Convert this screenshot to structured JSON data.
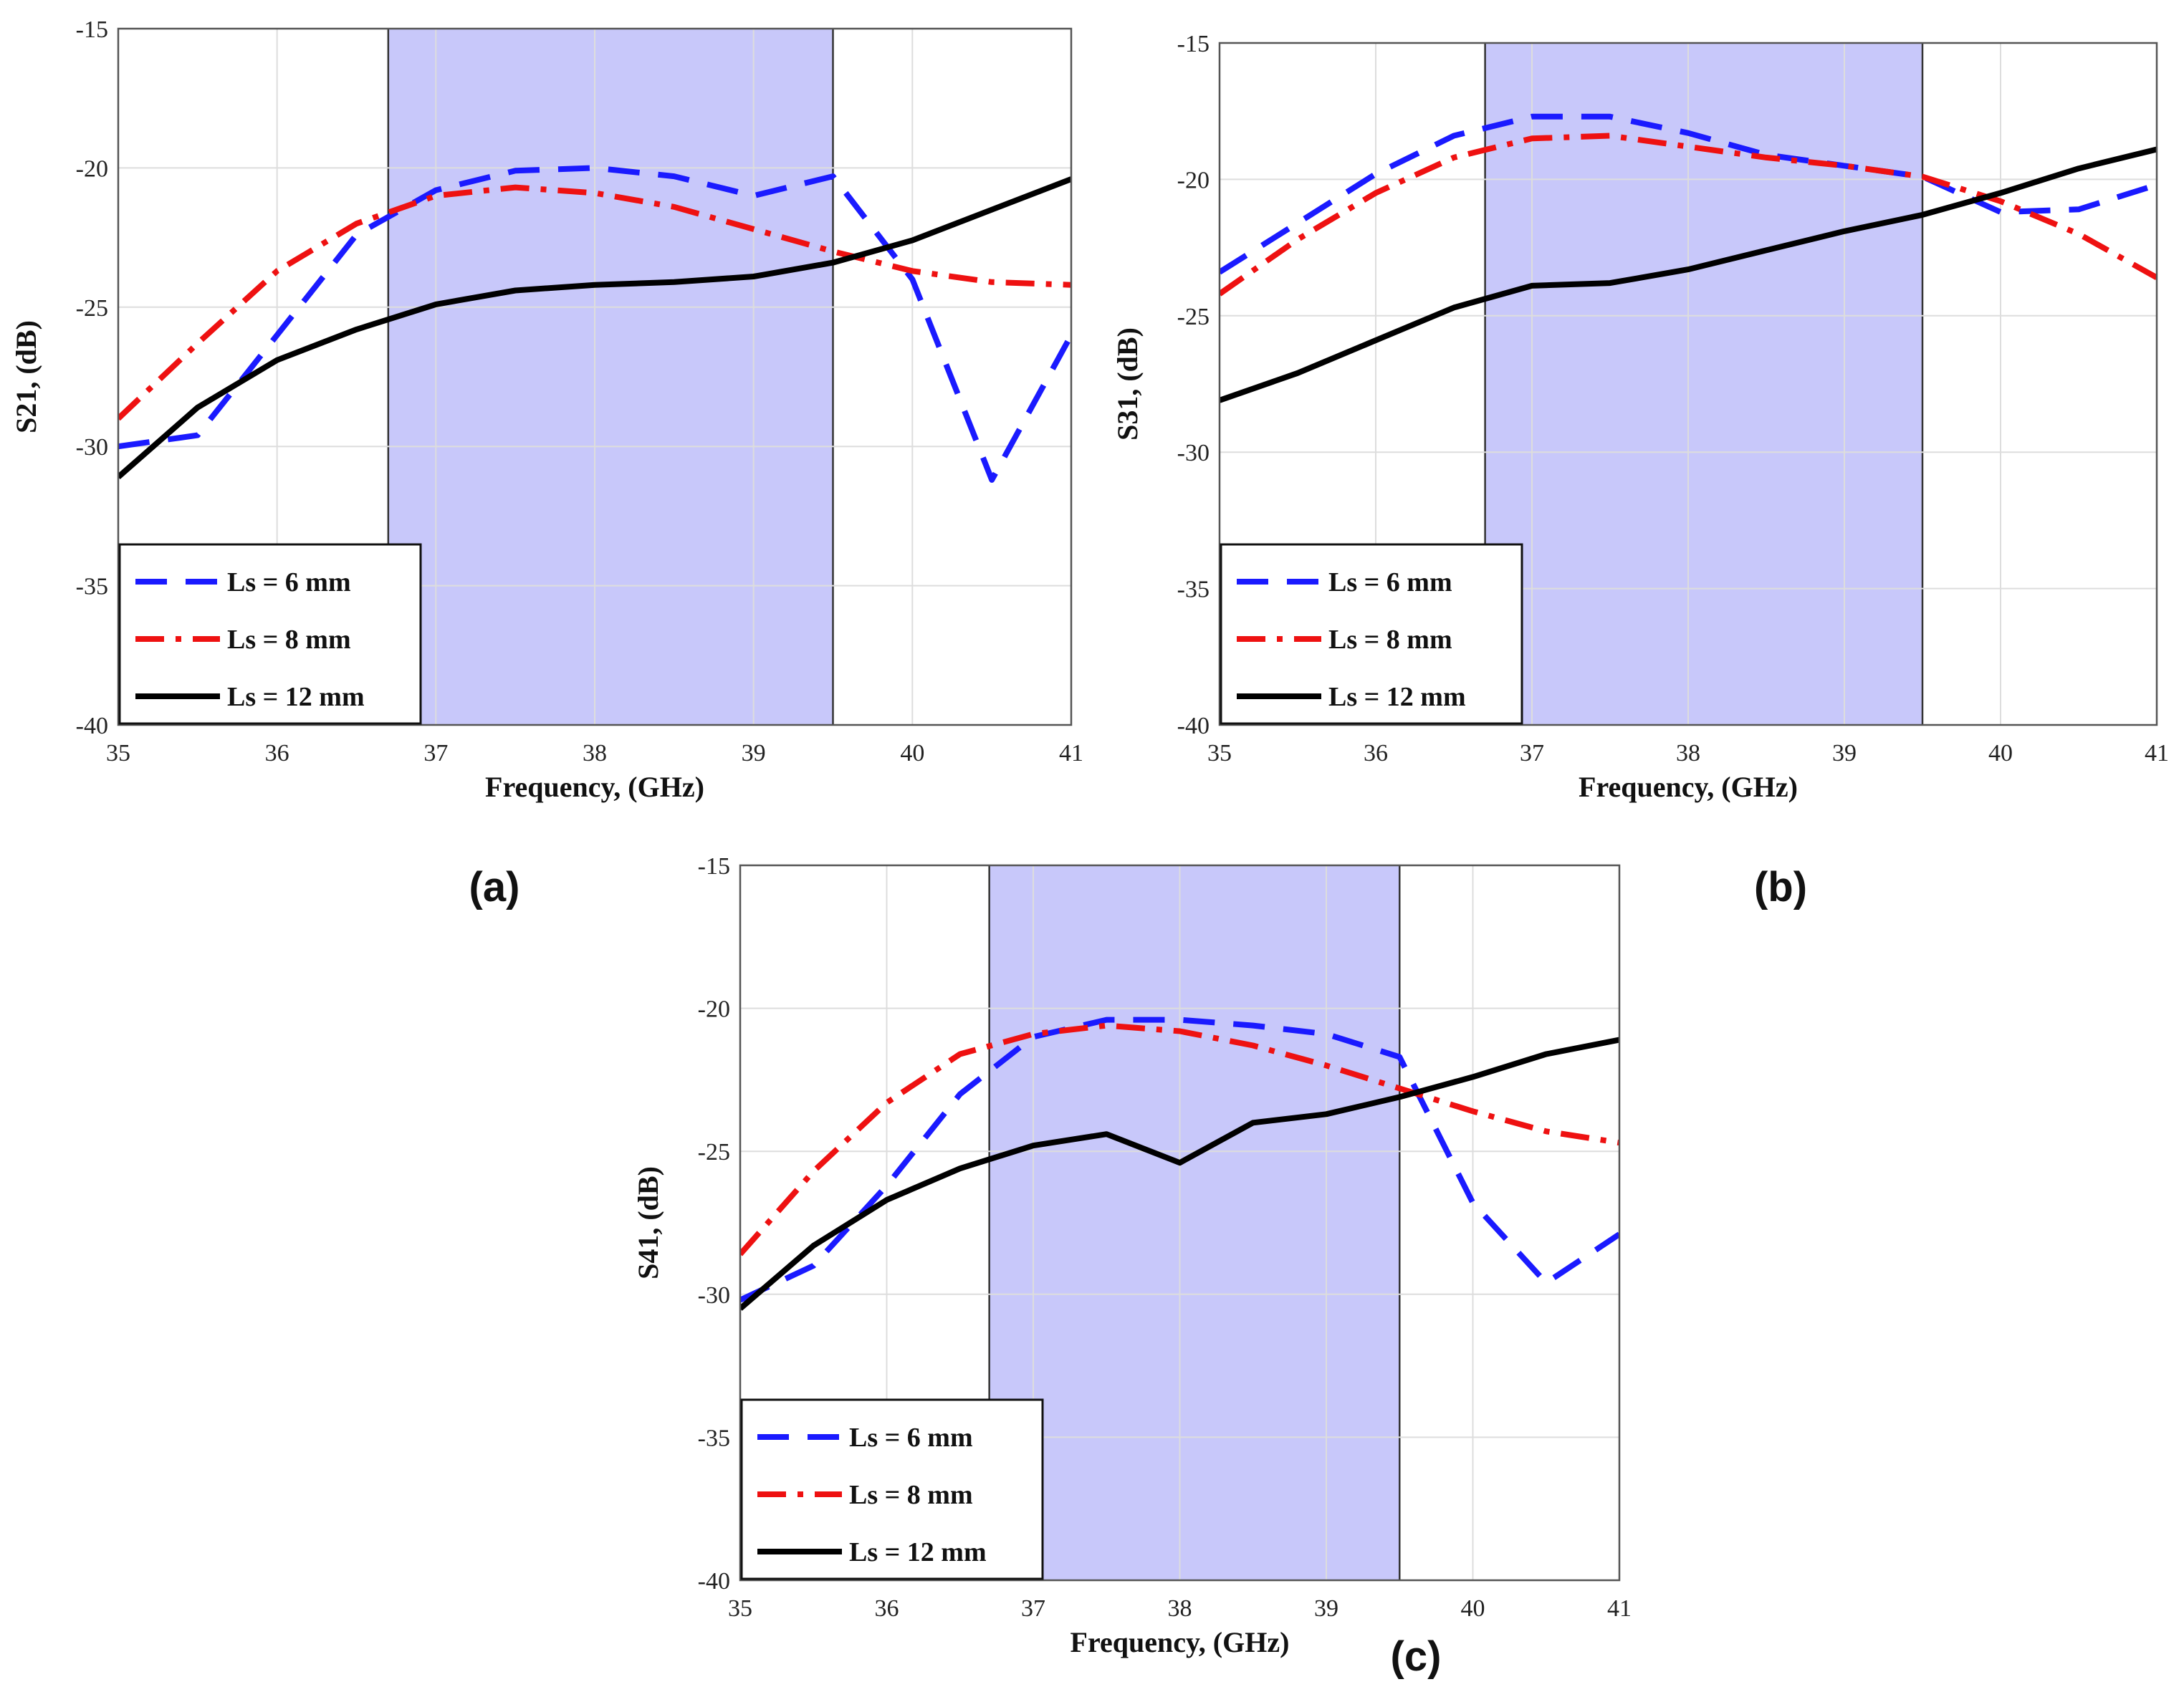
{
  "chart_data": [
    {
      "type": "line",
      "panel_label": "(a)",
      "xlabel": "Frequency, (GHz)",
      "ylabel": "S21, (dB)",
      "xlim": [
        35,
        41
      ],
      "ylim": [
        -40,
        -15
      ],
      "xticks": [
        35,
        36,
        37,
        38,
        39,
        40,
        41
      ],
      "yticks": [
        -40,
        -35,
        -30,
        -25,
        -20,
        -15
      ],
      "grid": true,
      "shaded_band": [
        36.7,
        39.5
      ],
      "legend": "bottom-left",
      "series": [
        {
          "name": "Ls = 6 mm",
          "style": "dashed",
          "color": "#1a1aff",
          "x": [
            35,
            35.5,
            36,
            36.5,
            37,
            37.5,
            38,
            38.5,
            39,
            39.5,
            40,
            40.5,
            41
          ],
          "y": [
            -30.0,
            -29.6,
            -26.0,
            -22.4,
            -20.8,
            -20.1,
            -20.0,
            -20.3,
            -21.0,
            -20.3,
            -24.0,
            -31.2,
            -26.0
          ]
        },
        {
          "name": "Ls = 8 mm",
          "style": "dashdot",
          "color": "#ee1111",
          "x": [
            35,
            35.5,
            36,
            36.5,
            37,
            37.5,
            38,
            38.5,
            39,
            39.5,
            40,
            40.5,
            41
          ],
          "y": [
            -29.0,
            -26.3,
            -23.7,
            -22.0,
            -21.0,
            -20.7,
            -20.9,
            -21.4,
            -22.2,
            -23.0,
            -23.7,
            -24.1,
            -24.2
          ]
        },
        {
          "name": "Ls = 12 mm",
          "style": "solid",
          "color": "#000000",
          "x": [
            35,
            35.5,
            36,
            36.5,
            37,
            37.5,
            38,
            38.5,
            39,
            39.5,
            40,
            40.5,
            41
          ],
          "y": [
            -31.1,
            -28.6,
            -26.9,
            -25.8,
            -24.9,
            -24.4,
            -24.2,
            -24.1,
            -23.9,
            -23.4,
            -22.6,
            -21.5,
            -20.4
          ]
        }
      ]
    },
    {
      "type": "line",
      "panel_label": "(b)",
      "xlabel": "Frequency, (GHz)",
      "ylabel": "S31, (dB)",
      "xlim": [
        35,
        41
      ],
      "ylim": [
        -40,
        -15
      ],
      "xticks": [
        35,
        36,
        37,
        38,
        39,
        40,
        41
      ],
      "yticks": [
        -40,
        -35,
        -30,
        -25,
        -20,
        -15
      ],
      "grid": true,
      "shaded_band": [
        36.7,
        39.5
      ],
      "legend": "bottom-left",
      "series": [
        {
          "name": "Ls = 6 mm",
          "style": "dashed",
          "color": "#1a1aff",
          "x": [
            35,
            35.5,
            36,
            36.5,
            37,
            37.5,
            38,
            38.5,
            39,
            39.5,
            40,
            40.5,
            41
          ],
          "y": [
            -23.4,
            -21.6,
            -19.8,
            -18.4,
            -17.7,
            -17.7,
            -18.3,
            -19.1,
            -19.5,
            -19.9,
            -21.2,
            -21.1,
            -20.2
          ]
        },
        {
          "name": "Ls = 8 mm",
          "style": "dashdot",
          "color": "#ee1111",
          "x": [
            35,
            35.5,
            36,
            36.5,
            37,
            37.5,
            38,
            38.5,
            39,
            39.5,
            40,
            40.5,
            41
          ],
          "y": [
            -24.2,
            -22.2,
            -20.5,
            -19.2,
            -18.5,
            -18.4,
            -18.8,
            -19.2,
            -19.5,
            -19.9,
            -20.8,
            -22.0,
            -23.6
          ]
        },
        {
          "name": "Ls = 12 mm",
          "style": "solid",
          "color": "#000000",
          "x": [
            35,
            35.5,
            36,
            36.5,
            37,
            37.5,
            38,
            38.5,
            39,
            39.5,
            40,
            40.5,
            41
          ],
          "y": [
            -28.1,
            -27.1,
            -25.9,
            -24.7,
            -23.9,
            -23.8,
            -23.3,
            -22.6,
            -21.9,
            -21.3,
            -20.5,
            -19.6,
            -18.9
          ]
        }
      ]
    },
    {
      "type": "line",
      "panel_label": "(c)",
      "xlabel": "Frequency, (GHz)",
      "ylabel": "S41, (dB)",
      "xlim": [
        35,
        41
      ],
      "ylim": [
        -40,
        -15
      ],
      "xticks": [
        35,
        36,
        37,
        38,
        39,
        40,
        41
      ],
      "yticks": [
        -40,
        -35,
        -30,
        -25,
        -20,
        -15
      ],
      "grid": true,
      "shaded_band": [
        36.7,
        39.5
      ],
      "legend": "bottom-left",
      "series": [
        {
          "name": "Ls = 6 mm",
          "style": "dashed",
          "color": "#1a1aff",
          "x": [
            35,
            35.5,
            36,
            36.5,
            37,
            37.5,
            38,
            38.5,
            39,
            39.5,
            40,
            40.5,
            41
          ],
          "y": [
            -30.2,
            -29.0,
            -26.2,
            -23.0,
            -21.0,
            -20.4,
            -20.4,
            -20.6,
            -20.9,
            -21.7,
            -26.8,
            -29.6,
            -27.9
          ]
        },
        {
          "name": "Ls = 8 mm",
          "style": "dashdot",
          "color": "#ee1111",
          "x": [
            35,
            35.5,
            36,
            36.5,
            37,
            37.5,
            38,
            38.5,
            39,
            39.5,
            40,
            40.5,
            41
          ],
          "y": [
            -28.6,
            -25.7,
            -23.3,
            -21.6,
            -20.9,
            -20.6,
            -20.8,
            -21.3,
            -22.0,
            -22.8,
            -23.6,
            -24.3,
            -24.7
          ]
        },
        {
          "name": "Ls = 12 mm",
          "style": "solid",
          "color": "#000000",
          "x": [
            35,
            35.5,
            36,
            36.5,
            37,
            37.5,
            38,
            38.5,
            39,
            39.5,
            40,
            40.5,
            41
          ],
          "y": [
            -30.5,
            -28.3,
            -26.7,
            -25.6,
            -24.8,
            -24.4,
            -25.4,
            -24.0,
            -23.7,
            -23.1,
            -22.4,
            -21.6,
            -21.1
          ]
        }
      ]
    }
  ],
  "colors": {
    "band_fill": "#c8c8fa",
    "grid": "#dddddd",
    "axis": "#555555"
  }
}
